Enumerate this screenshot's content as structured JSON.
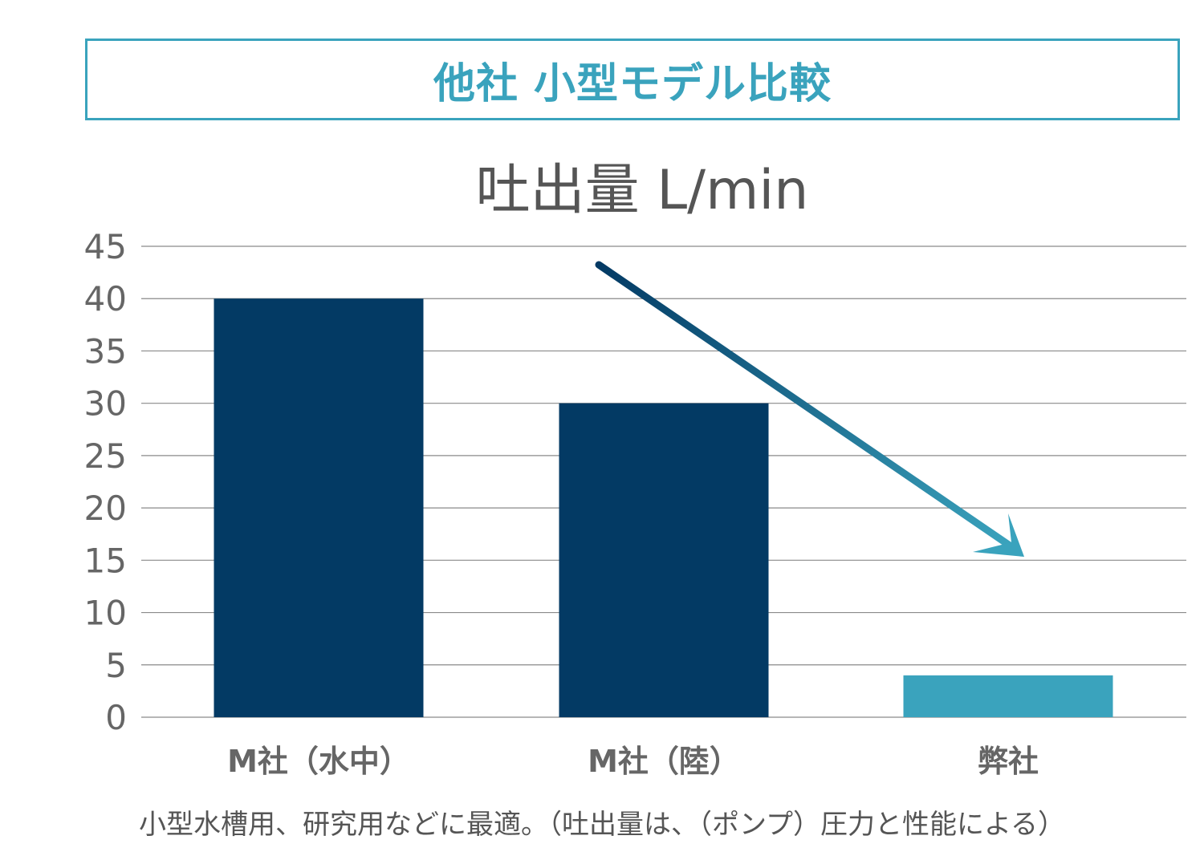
{
  "header": {
    "title": "他社 小型モデル比較"
  },
  "chart_data": {
    "type": "bar",
    "title": "吐出量 L/min",
    "categories": [
      "M社（水中）",
      "M社（陸）",
      "弊社"
    ],
    "values": [
      40,
      30,
      4
    ],
    "bar_colors": [
      "#033a64",
      "#033a64",
      "#3aa3bd"
    ],
    "ylim": [
      0,
      45
    ],
    "yticks": [
      0,
      5,
      10,
      15,
      20,
      25,
      30,
      35,
      40,
      45
    ],
    "grid": true,
    "annotation": {
      "type": "arrow",
      "from_category": "M社（陸）",
      "to_category": "弊社",
      "colors": [
        "#033a64",
        "#3aa3bd"
      ]
    }
  },
  "footnote": "小型水槽用、研究用などに最適。（吐出量は、（ポンプ）圧力と性能による）"
}
